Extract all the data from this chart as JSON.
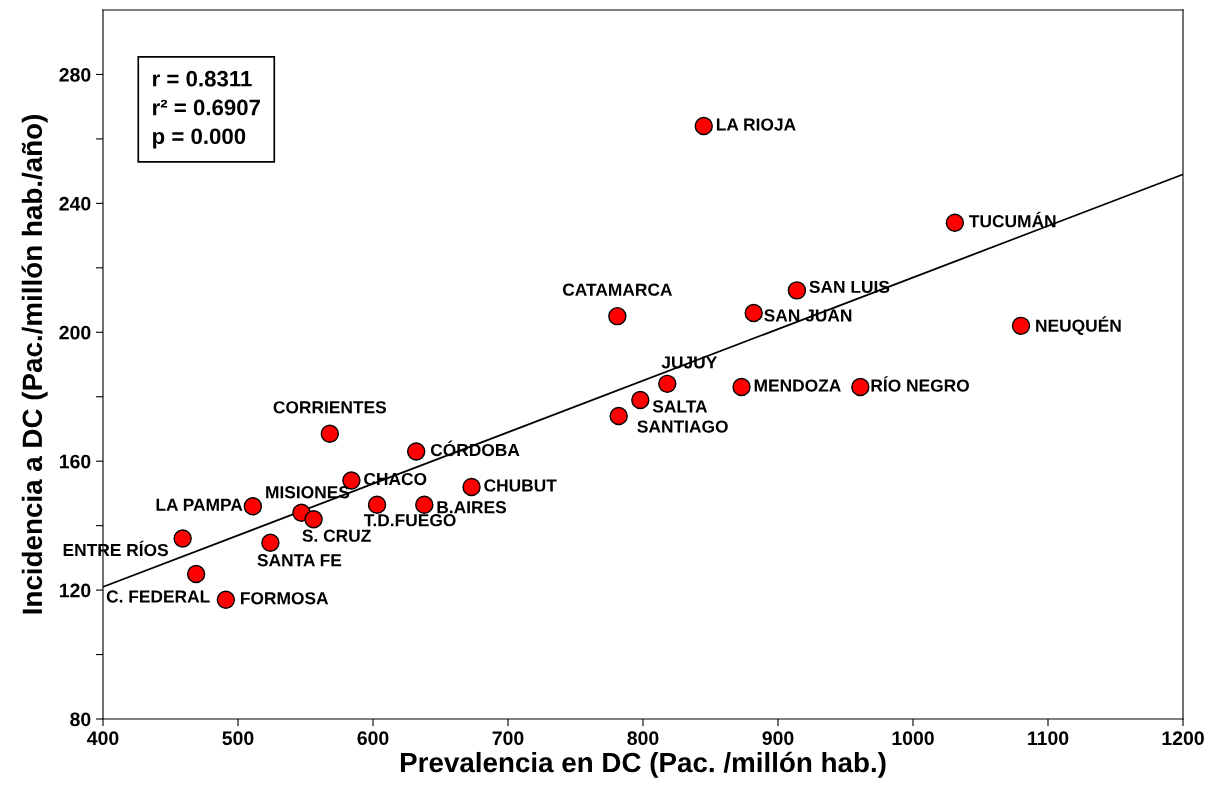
{
  "chart_data": {
    "type": "scatter",
    "xlabel": "Prevalencia en DC (Pac. /millón hab.)",
    "ylabel": "Incidencia a DC (Pac./millón hab./año)",
    "xlim": [
      400,
      1200
    ],
    "xticks": [
      400,
      500,
      600,
      700,
      800,
      900,
      1000,
      1100,
      1200
    ],
    "ylim": [
      80,
      300
    ],
    "yticks": [
      80,
      {
        "value": 100,
        "label": null
      },
      120,
      {
        "value": 140,
        "label": null
      },
      160,
      {
        "value": 180,
        "label": null
      },
      200,
      {
        "value": 220,
        "label": null
      },
      240,
      {
        "value": 260,
        "label": null
      },
      280
    ],
    "grid": false,
    "marker": "circle",
    "series": [
      {
        "color": "#ff0000",
        "x": [
          845,
          1031,
          914,
          882,
          1080,
          781,
          818,
          873,
          961,
          798,
          782,
          568,
          632,
          584,
          673,
          638,
          603,
          511,
          547,
          556,
          524,
          459,
          469,
          491
        ],
        "values": [
          264,
          234,
          213,
          206,
          202,
          205,
          184,
          183,
          183,
          179,
          174,
          168.5,
          163,
          154,
          152,
          146.5,
          146.5,
          146,
          144,
          142,
          134.7,
          136,
          125,
          117
        ]
      },
      {
        "type": "line",
        "marker": "none",
        "color": "#000000",
        "x": [
          400,
          1200
        ],
        "values": [
          121,
          249
        ]
      }
    ],
    "annotations": [
      "r = 0.8311\nr² = 0.6907\np = 0.000",
      {
        "text": "LA RIOJA",
        "x": 845,
        "y": 264
      },
      {
        "text": "TUCUMÁN",
        "x": 1031,
        "y": 234
      },
      {
        "text": "SAN LUIS",
        "x": 914,
        "y": 213
      },
      {
        "text": "SAN JUAN",
        "x": 882,
        "y": 206
      },
      {
        "text": "NEUQUÉN",
        "x": 1080,
        "y": 202
      },
      {
        "text": "CATAMARCA",
        "x": 781,
        "y": 205
      },
      {
        "text": "JUJUY",
        "x": 818,
        "y": 184
      },
      {
        "text": "MENDOZA",
        "x": 873,
        "y": 183
      },
      {
        "text": "RÍO NEGRO",
        "x": 961,
        "y": 183
      },
      {
        "text": "SALTA",
        "x": 798,
        "y": 179
      },
      {
        "text": "SANTIAGO",
        "x": 782,
        "y": 174
      },
      {
        "text": "CORRIENTES",
        "x": 568,
        "y": 168.5
      },
      {
        "text": "CÓRDOBA",
        "x": 632,
        "y": 163
      },
      {
        "text": "CHACO",
        "x": 584,
        "y": 154
      },
      {
        "text": "CHUBUT",
        "x": 673,
        "y": 152
      },
      {
        "text": "B.AIRES",
        "x": 638,
        "y": 146.5
      },
      {
        "text": "T.D.FUEGO",
        "x": 603,
        "y": 146.5
      },
      {
        "text": "LA PAMPA",
        "x": 511,
        "y": 146
      },
      {
        "text": "MISIONES",
        "x": 547,
        "y": 144
      },
      {
        "text": "S. CRUZ",
        "x": 556,
        "y": 142
      },
      {
        "text": "SANTA FE",
        "x": 524,
        "y": 134.7
      },
      {
        "text": "ENTRE RÍOS",
        "x": 459,
        "y": 136
      },
      {
        "text": "C. FEDERAL",
        "x": 469,
        "y": 125
      },
      {
        "text": "FORMOSA",
        "x": 491,
        "y": 117
      }
    ]
  }
}
